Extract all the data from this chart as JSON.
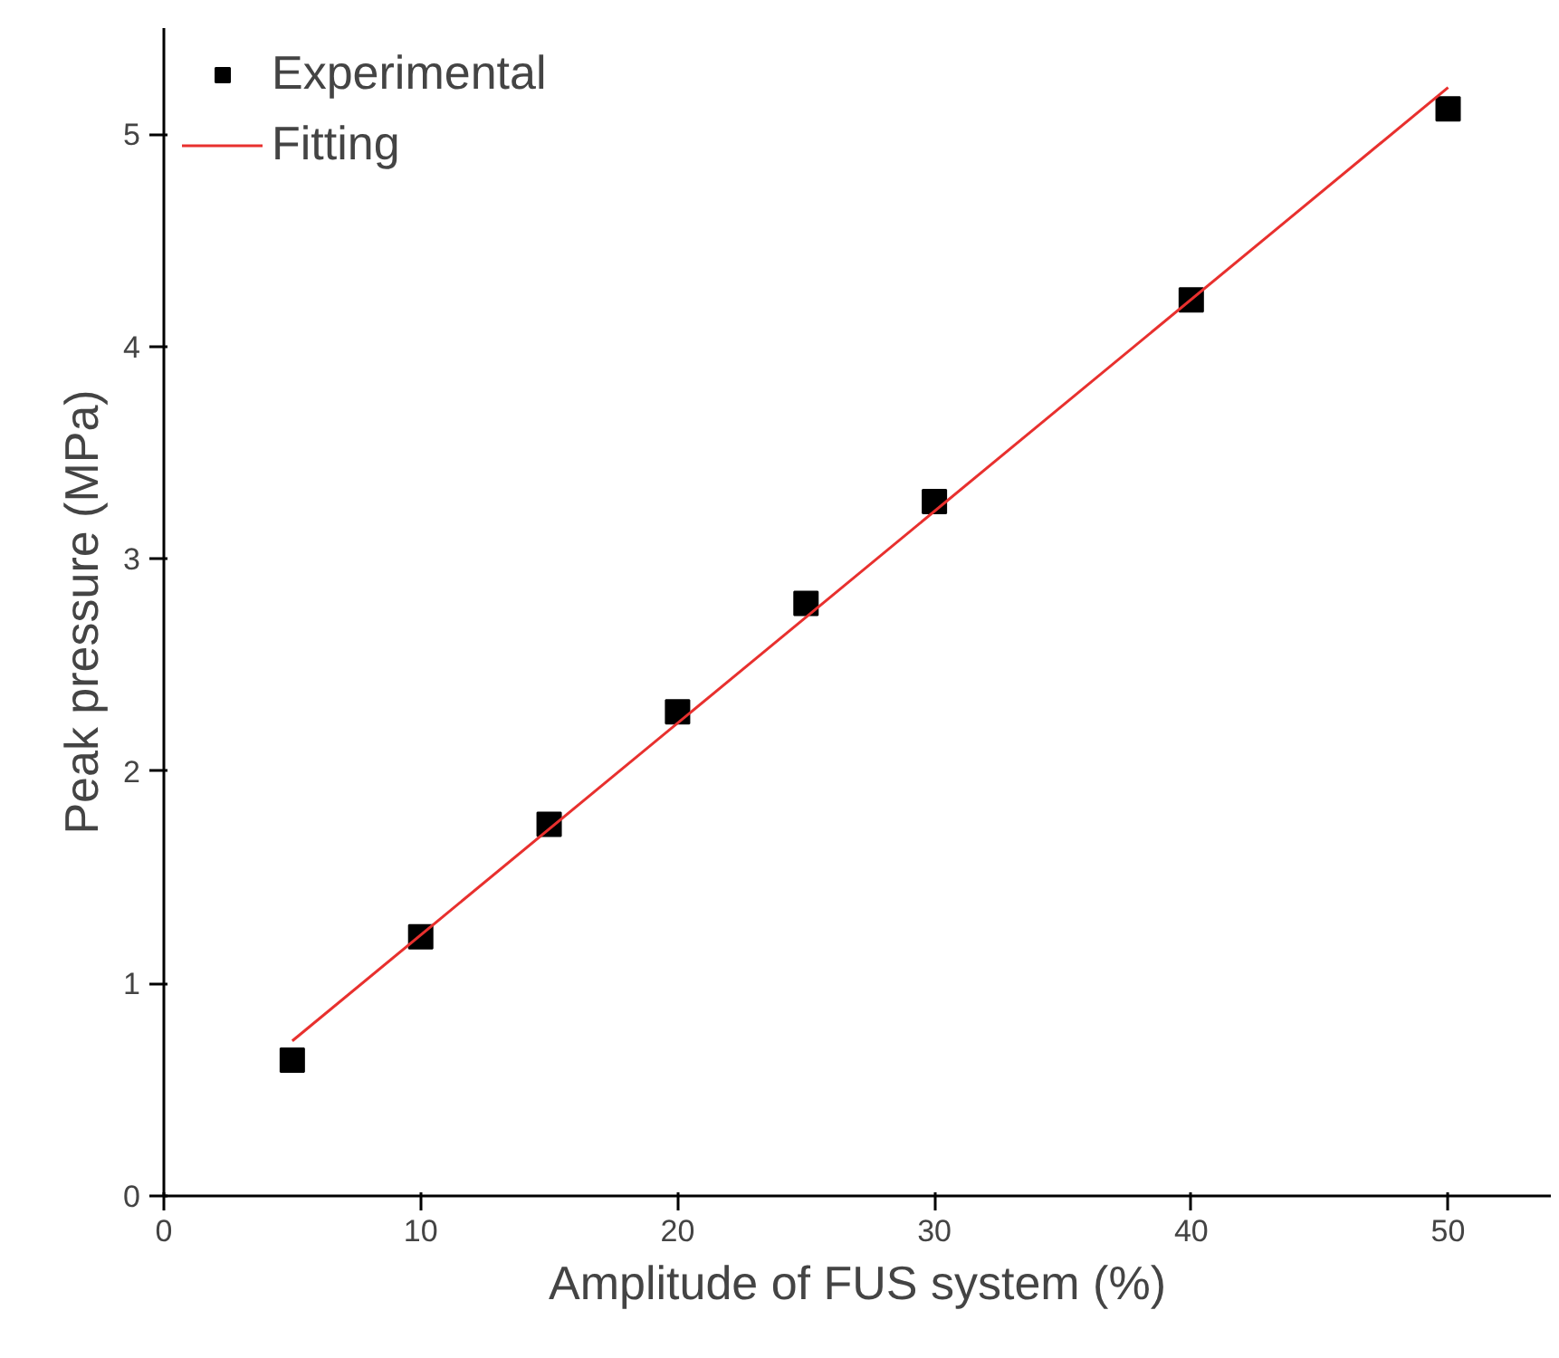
{
  "chart_data": {
    "type": "scatter",
    "xlabel": "Amplitude of FUS system (%)",
    "ylabel": "Peak pressure (MPa)",
    "xlim": [
      0,
      54
    ],
    "ylim": [
      0,
      5.5
    ],
    "xticks": [
      0,
      10,
      20,
      30,
      40,
      50
    ],
    "yticks": [
      0,
      1,
      2,
      3,
      4,
      5
    ],
    "grid": false,
    "legend": "top left",
    "series": [
      {
        "name": "Experimental",
        "marker": "square",
        "color": "#000000",
        "x": [
          5,
          10,
          15,
          20,
          25,
          30,
          40,
          50
        ],
        "values": [
          0.64,
          1.22,
          1.75,
          2.28,
          2.79,
          3.27,
          4.22,
          5.12
        ]
      },
      {
        "name": "Fitting",
        "type": "line",
        "color": "#e8302e",
        "x": [
          5,
          50
        ],
        "values": [
          0.73,
          5.22
        ],
        "line_style": "solid"
      }
    ]
  }
}
